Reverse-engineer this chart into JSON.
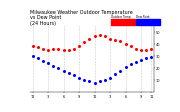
{
  "title": "Milwaukee Weather Outdoor Temperature\nvs Dew Point\n(24 Hours)",
  "title_fontsize": 3.5,
  "temp_color": "#ff0000",
  "dew_color": "#0000ff",
  "bg_color": "#ffffff",
  "grid_color": "#cccccc",
  "legend_temp_label": "Outdoor Temp",
  "legend_dew_label": "Dew Point",
  "hours": [
    0,
    1,
    2,
    3,
    4,
    5,
    6,
    7,
    8,
    9,
    10,
    11,
    12,
    13,
    14,
    15,
    16,
    17,
    18,
    19,
    20,
    21,
    22,
    23
  ],
  "temp": [
    38,
    37,
    36,
    35,
    36,
    36,
    35,
    35,
    36,
    38,
    41,
    44,
    46,
    47,
    46,
    44,
    43,
    42,
    40,
    38,
    36,
    35,
    35,
    36
  ],
  "dew": [
    30,
    28,
    26,
    24,
    22,
    20,
    18,
    16,
    14,
    12,
    10,
    9,
    8,
    9,
    10,
    12,
    15,
    18,
    21,
    23,
    25,
    27,
    28,
    29
  ],
  "ylim": [
    0,
    55
  ],
  "xlim": [
    -0.5,
    23.5
  ],
  "tick_fontsize": 2.5,
  "marker_size": 1.2,
  "ylabel_fontsize": 2.5
}
